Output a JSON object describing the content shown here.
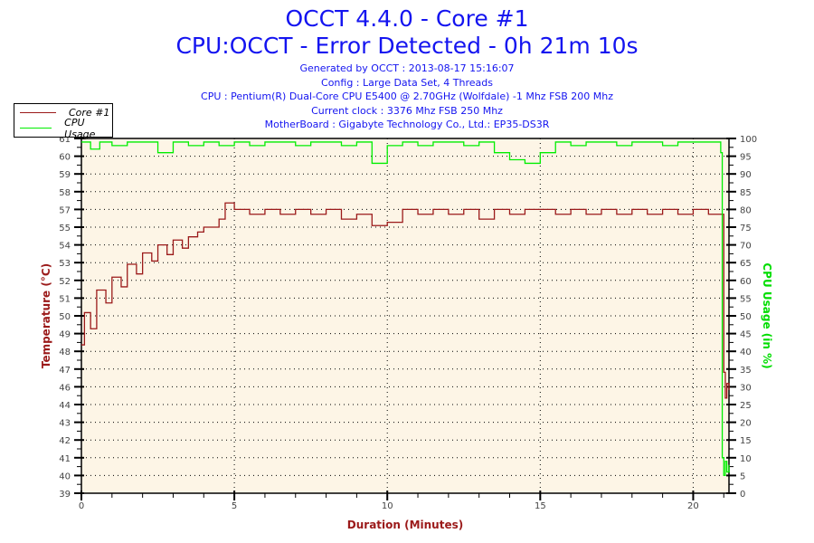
{
  "chart_data": {
    "type": "line",
    "title": "OCCT 4.4.0 - Core #1",
    "subtitle": "CPU:OCCT - Error Detected - 0h 21m 10s",
    "info": [
      "Generated by OCCT : 2013-08-17 15:16:07",
      "Config : Large Data Set, 4 Threads",
      "CPU : Pentium(R) Dual-Core CPU E5400 @ 2.70GHz (Wolfdale) -1 Mhz FSB 200 Mhz",
      "Current clock : 3376 Mhz FSB 250 Mhz",
      "MotherBoard : Gigabyte Technology Co., Ltd.: EP35-DS3R"
    ],
    "xlabel": "Duration (Minutes)",
    "ylabel": "Temperature (°C)",
    "y2label": "CPU Usage (in %)",
    "xlim": [
      0,
      21.17
    ],
    "ylim": [
      39,
      61
    ],
    "y2lim": [
      0,
      100
    ],
    "xticks": [
      "0",
      "5",
      "10",
      "15",
      "20"
    ],
    "yticks": [
      "61",
      "60",
      "59",
      "58",
      "57",
      "55",
      "54",
      "53",
      "52",
      "51",
      "50",
      "49",
      "48",
      "47",
      "46",
      "44",
      "43",
      "42",
      "41",
      "40",
      "39"
    ],
    "y2ticks": [
      "100",
      "95",
      "90",
      "85",
      "80",
      "75",
      "70",
      "65",
      "60",
      "55",
      "50",
      "45",
      "40",
      "35",
      "30",
      "25",
      "20",
      "15",
      "10",
      "5",
      "0"
    ],
    "grid": true,
    "legend_position": "top-left",
    "colors": {
      "temp": "#9b1a1a",
      "cpu": "#00ee00",
      "bg": "#fdf5e6",
      "title": "#1414f0"
    },
    "series": [
      {
        "name": "Core #1",
        "axis": "left",
        "x": [
          0,
          0.1,
          0.3,
          0.5,
          0.8,
          1,
          1.3,
          1.5,
          1.8,
          2,
          2.3,
          2.5,
          2.8,
          3,
          3.3,
          3.5,
          3.8,
          4,
          4.3,
          4.5,
          4.7,
          5,
          5.5,
          6,
          6.5,
          7,
          7.5,
          8,
          8.5,
          9,
          9.5,
          10,
          10.5,
          11,
          11.5,
          12,
          12.5,
          13,
          13.5,
          14,
          14.5,
          15,
          15.5,
          16,
          16.5,
          17,
          17.5,
          18,
          18.5,
          19,
          19.5,
          20,
          20.5,
          20.9,
          21.0,
          21.05,
          21.1,
          21.17
        ],
        "values": [
          48.2,
          50.2,
          49.2,
          51.6,
          50.8,
          52.4,
          51.8,
          53.2,
          52.6,
          53.9,
          53.4,
          54.4,
          53.8,
          54.7,
          54.2,
          54.9,
          55.2,
          55.5,
          55.5,
          56,
          57,
          56.6,
          56.3,
          56.6,
          56.3,
          56.6,
          56.3,
          56.6,
          56,
          56.3,
          55.6,
          55.8,
          56.6,
          56.3,
          56.6,
          56.3,
          56.6,
          56,
          56.6,
          56.3,
          56.6,
          56.6,
          56.3,
          56.6,
          56.3,
          56.6,
          56.3,
          56.6,
          56.3,
          56.6,
          56.3,
          56.6,
          56.3,
          56.3,
          46.5,
          44.9,
          45.8,
          45.4
        ]
      },
      {
        "name": "CPU Usage",
        "axis": "right",
        "x": [
          0,
          0.3,
          0.6,
          1,
          1.5,
          2,
          2.5,
          3,
          3.5,
          4,
          4.5,
          5,
          5.5,
          6,
          6.5,
          7,
          7.5,
          8,
          8.5,
          9,
          9.5,
          10,
          10.5,
          11,
          11.5,
          12,
          12.5,
          13,
          13.5,
          14,
          14.5,
          15,
          15.5,
          16,
          16.5,
          17,
          17.5,
          18,
          18.5,
          19,
          19.5,
          20,
          20.5,
          20.9,
          20.95,
          21.0,
          21.05,
          21.1,
          21.17
        ],
        "values": [
          99,
          97,
          99,
          98,
          99,
          99,
          96,
          99,
          98,
          99,
          98,
          99,
          98,
          99,
          99,
          98,
          99,
          99,
          98,
          99,
          93,
          98,
          99,
          98,
          99,
          99,
          98,
          99,
          96,
          94,
          93,
          96,
          99,
          98,
          99,
          99,
          98,
          99,
          99,
          98,
          99,
          99,
          99,
          96,
          10,
          5,
          9,
          6,
          8
        ]
      }
    ]
  }
}
